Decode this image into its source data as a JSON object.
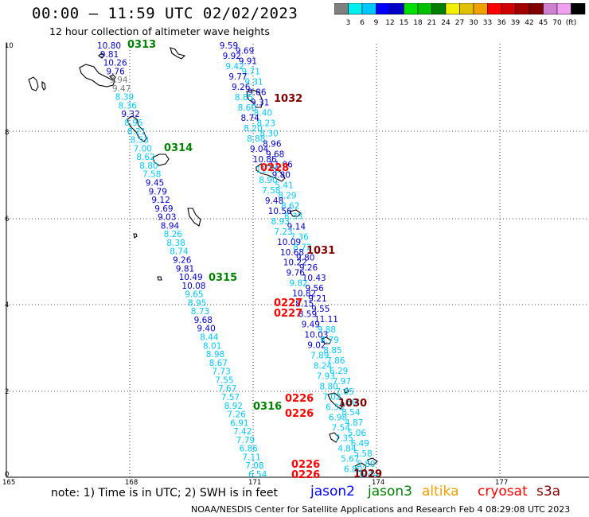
{
  "header": {
    "title": "00:00 – 11:59 UTC 02/02/2023",
    "subtitle": "12 hour collection of altimeter wave heights"
  },
  "colorbar": {
    "colors": [
      "#808080",
      "#00f0f0",
      "#00c8ff",
      "#0000ff",
      "#0000c8",
      "#00e000",
      "#00c000",
      "#008000",
      "#f0f000",
      "#e0c000",
      "#f0a000",
      "#ff0000",
      "#d00000",
      "#a00000",
      "#800000",
      "#d080d0",
      "#f0a0f0",
      "#000000"
    ],
    "labels": [
      "3",
      "6",
      "9",
      "12",
      "15",
      "18",
      "21",
      "24",
      "27",
      "30",
      "33",
      "36",
      "39",
      "42",
      "45",
      "70",
      "(ft)"
    ]
  },
  "axes": {
    "x_ticks": [
      "165",
      "168",
      "171",
      "174",
      "177"
    ],
    "y_ticks": [
      "10",
      "8",
      "6",
      "4",
      "2",
      "0"
    ]
  },
  "tracks": {
    "westTrack": {
      "values": [
        "10.80",
        "9.81",
        "10.26",
        "9.76",
        "9.94",
        "9.47",
        "8.39",
        "8.36",
        "9.32",
        "8.95",
        "8.21",
        "8.53",
        "7.00",
        "8.62",
        "8.80",
        "7.58",
        "9.45",
        "9.79",
        "9.12",
        "9.69",
        "9.03",
        "8.94",
        "8.26",
        "8.38",
        "8.74",
        "9.26",
        "9.81",
        "10.49",
        "10.08",
        "9.65",
        "8.95",
        "8.73",
        "9.68",
        "9.40",
        "8.44",
        "8.01",
        "8.98",
        "8.67",
        "7.73",
        "7.55",
        "7.67",
        "7.57",
        "8.92",
        "7.26",
        "6.91",
        "7.42",
        "7.79",
        "6.86",
        "7.11",
        "7.08",
        "6.54"
      ],
      "colors": [
        "#0000c8",
        "#0000c8",
        "#0000c8",
        "#0000c8",
        "#808080",
        "#808080",
        "#00c8ff",
        "#00c8ff",
        "#0000c8",
        "#00c8ff",
        "#00c8ff",
        "#00c8ff",
        "#00c8ff",
        "#00c8ff",
        "#00c8ff",
        "#00c8ff",
        "#0000c8",
        "#0000c8",
        "#0000c8",
        "#0000c8",
        "#0000c8",
        "#0000c8",
        "#00c8ff",
        "#00c8ff",
        "#00c8ff",
        "#0000c8",
        "#0000c8",
        "#0000c8",
        "#0000c8",
        "#00c8ff",
        "#00c8ff",
        "#00c8ff",
        "#0000c8",
        "#0000c8",
        "#00c8ff",
        "#00c8ff",
        "#00c8ff",
        "#00c8ff",
        "#00c8ff",
        "#00c8ff",
        "#00c8ff",
        "#00c8ff",
        "#00c8ff",
        "#00c8ff",
        "#00c8ff",
        "#00c8ff",
        "#00c8ff",
        "#00c8ff",
        "#00c8ff",
        "#00c8ff",
        "#00c8ff"
      ]
    },
    "centerTrack": {
      "values": [
        "9.59",
        "9.69",
        "9.92",
        "9.91",
        "9.42",
        "9.71",
        "9.77",
        "9.31",
        "9.26",
        "9.86",
        "8.85",
        "9.31",
        "8.60",
        "8.40",
        "8.74",
        "8.23",
        "8.20",
        "8.30",
        "8.88",
        "8.96",
        "9.04",
        "9.68",
        "10.86",
        "11.06",
        "11.78",
        "9.80",
        "8.90",
        "5.41",
        "7.58",
        "8.29",
        "9.48",
        "8.62",
        "10.56",
        "8.33",
        "8.93",
        "9.14",
        "7.23",
        "7.36",
        "10.09",
        "8.72",
        "10.68",
        "9.80",
        "10.22",
        "9.26",
        "9.76",
        "10.43",
        "9.82",
        "9.56",
        "10.82",
        "9.21",
        "8.15",
        "9.55",
        "8.59",
        "11.11",
        "9.49",
        "9.88",
        "10.03",
        "8.79",
        "9.02",
        "8.85",
        "7.89",
        "7.86",
        "8.24",
        "6.29",
        "7.93",
        "7.97",
        "8.80",
        "7.85",
        "7.02",
        "7.80",
        "6.33",
        "8.54",
        "6.98",
        "4.87",
        "7.54",
        "5.06",
        "7.35",
        "6.49",
        "4.84",
        "5.58",
        "5.67",
        "5.80",
        "6.80",
        "6.44"
      ],
      "colors": [
        "#0000c8",
        "#0000c8",
        "#0000c8",
        "#0000c8",
        "#00c8ff",
        "#00c8ff",
        "#0000c8",
        "#00c8ff",
        "#0000c8",
        "#0000c8",
        "#00c8ff",
        "#0000c8",
        "#00c8ff",
        "#00c8ff",
        "#0000c8",
        "#00c8ff",
        "#00c8ff",
        "#00c8ff",
        "#00c8ff",
        "#0000c8",
        "#0000c8",
        "#0000c8",
        "#0000c8",
        "#0000c8",
        "#00c8ff",
        "#0000c8",
        "#00c8ff",
        "#00c8ff",
        "#00c8ff",
        "#00c8ff",
        "#0000c8",
        "#00c8ff",
        "#0000c8",
        "#00c8ff",
        "#00c8ff",
        "#0000c8",
        "#00c8ff",
        "#00c8ff",
        "#0000c8",
        "#00c8ff",
        "#0000c8",
        "#0000c8",
        "#0000c8",
        "#0000c8",
        "#0000c8",
        "#0000c8",
        "#00c8ff",
        "#0000c8",
        "#0000c8",
        "#0000c8",
        "#0000c8",
        "#0000c8",
        "#0000c8",
        "#0000c8",
        "#0000c8",
        "#00c8ff",
        "#0000c8",
        "#00c8ff",
        "#0000c8",
        "#00c8ff",
        "#00c8ff",
        "#00c8ff",
        "#00c8ff",
        "#00c8ff",
        "#00c8ff",
        "#00c8ff",
        "#00c8ff",
        "#00c8ff",
        "#00c8ff",
        "#00c8ff",
        "#00c8ff",
        "#00c8ff",
        "#00c8ff",
        "#00c8ff",
        "#00c8ff",
        "#00c8ff",
        "#00c8ff",
        "#00c8ff",
        "#00c8ff",
        "#00c8ff",
        "#00c8ff",
        "#00c8ff",
        "#00c8ff",
        "#00c8ff"
      ]
    }
  },
  "times": {
    "green": [
      "0313",
      "0314",
      "0315",
      "0316"
    ],
    "red": [
      "0228",
      "0227",
      "0227",
      "0226",
      "0226",
      "0226",
      "0226"
    ],
    "darkred": [
      "1032",
      "1031",
      "1030",
      "1029"
    ]
  },
  "footer": {
    "note": "note:  1) Time is in UTC;  2) SWH is in feet",
    "satellites": [
      {
        "name": "jason2",
        "color": "#0000ff"
      },
      {
        "name": "jason3",
        "color": "#008000"
      },
      {
        "name": "altika",
        "color": "#f0a000"
      },
      {
        "name": "cryosat",
        "color": "#ff0000"
      },
      {
        "name": "s3a",
        "color": "#800000"
      }
    ],
    "credit": "NOAA/NESDIS Center for Satellite Applications and Research    Feb  4 08:29:08 UTC 2023"
  }
}
